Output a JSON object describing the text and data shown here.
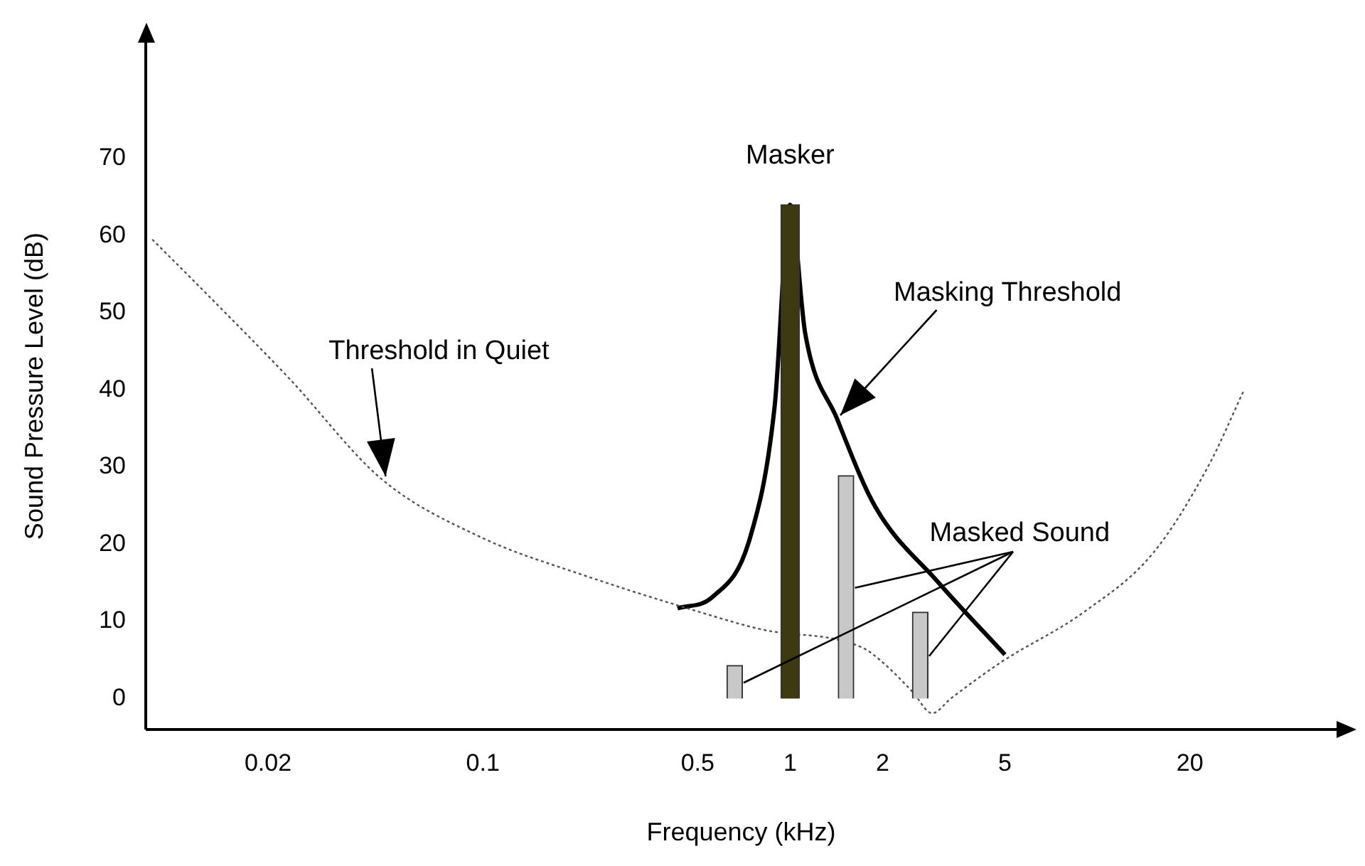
{
  "chart_data": {
    "type": "line",
    "xlabel": "Frequency (kHz)",
    "ylabel": "Sound Pressure Level (dB)",
    "log": "x",
    "xlim": [
      0.008,
      60
    ],
    "xticks": [
      0.02,
      0.1,
      0.5,
      1,
      2,
      5,
      20
    ],
    "ylim": [
      -4,
      85
    ],
    "yticks": [
      0,
      10,
      20,
      30,
      40,
      50,
      60,
      70
    ],
    "grid": false,
    "legend": false,
    "series": [
      {
        "type": "bar",
        "color": "#3d3a12",
        "x": [
          1
        ],
        "values": [
          64
        ]
      },
      {
        "type": "bar",
        "color": "#c8c8c8",
        "x": [
          0.66,
          1.52,
          2.65
        ],
        "values": [
          4.3,
          28.9,
          11.2
        ]
      },
      {
        "color": "#555555",
        "line_style": "dotted",
        "marker": "none",
        "x": [
          0.0084,
          0.0123,
          0.0233,
          0.047,
          0.1,
          0.209,
          0.5,
          0.8,
          1.72,
          2,
          2.5,
          2.9,
          3.33,
          4.85,
          9.1,
          15.2,
          23,
          30
        ],
        "values": [
          59.5,
          52.9,
          41.6,
          28.4,
          20.8,
          16.1,
          11.3,
          9,
          6.6,
          4.7,
          0.9,
          -1.9,
          0,
          4.7,
          11.3,
          18.9,
          30.2,
          40
        ]
      },
      {
        "color": "#000000",
        "line_style": "solid",
        "marker": "none",
        "x": [
          0.43,
          0.56,
          0.74,
          0.89,
          1,
          1.12,
          1.42,
          1.89,
          3.03,
          5
        ],
        "values": [
          11.7,
          13.2,
          20.8,
          37.8,
          64,
          47.3,
          36.3,
          24.9,
          15.1,
          5.7
        ]
      }
    ],
    "annotations": [
      {
        "text": "Masker",
        "x": 1,
        "y": 64
      },
      {
        "text": "Masking Threshold",
        "x": 1.42,
        "y": 36.3
      },
      {
        "text": "Threshold in Quiet",
        "x": 0.047,
        "y": 28.4
      },
      {
        "text": "Masked Sound",
        "x": 2.65,
        "y": 11.2
      }
    ]
  }
}
